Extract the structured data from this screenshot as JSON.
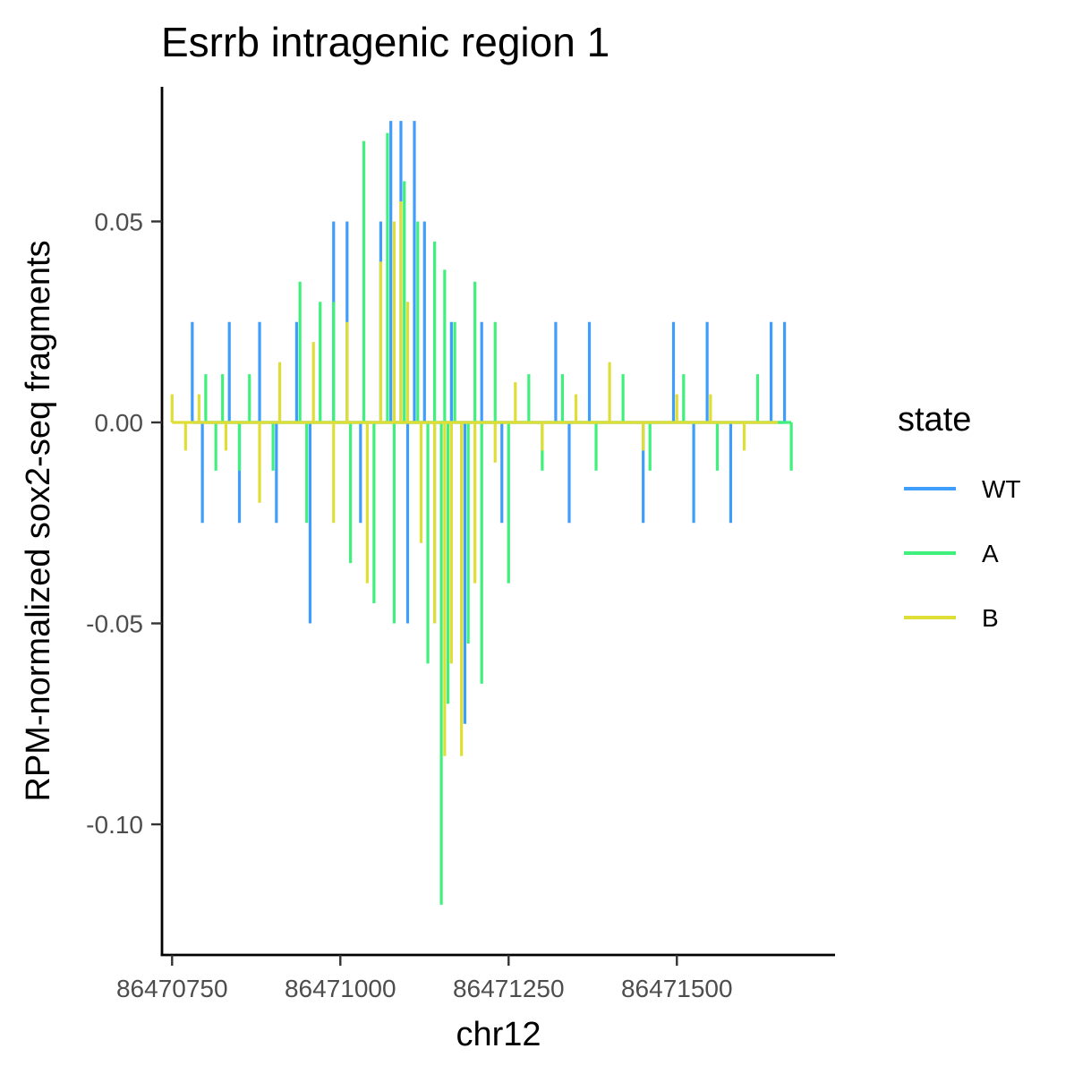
{
  "chart_data": {
    "type": "line",
    "title": "Esrrb intragenic region 1",
    "xlabel": "chr12",
    "ylabel": "RPM-normalized sox2-seq fragments",
    "xlim": [
      86470735,
      86471735
    ],
    "ylim": [
      -0.1325,
      0.0835
    ],
    "x_ticks": [
      86470750,
      86471000,
      86471250,
      86471500
    ],
    "x_tick_labels": [
      "86470750",
      "86471000",
      "86471250",
      "86471500"
    ],
    "y_ticks": [
      0.05,
      0.0,
      -0.05,
      -0.1
    ],
    "y_tick_labels": [
      "0.05",
      "0.00",
      "-0.05",
      "-0.10"
    ],
    "grid": false,
    "legend": {
      "title": "state",
      "position": "right",
      "entries": [
        "WT",
        "A",
        "B"
      ]
    },
    "series": [
      {
        "name": "WT",
        "color": "#3f9dfb",
        "x": [
          86470780,
          86470795,
          86470835,
          86470850,
          86470880,
          86470905,
          86470935,
          86470955,
          86470990,
          86471010,
          86471030,
          86471060,
          86471075,
          86471090,
          86471100,
          86471110,
          86471125,
          86471140,
          86471165,
          86471185,
          86471210,
          86471240,
          86471320,
          86471340,
          86471370,
          86471450,
          86471495,
          86471525,
          86471545,
          86471580,
          86471640,
          86471660
        ],
        "y": [
          0.025,
          -0.025,
          0.025,
          -0.025,
          0.025,
          -0.025,
          0.025,
          -0.05,
          0.05,
          0.05,
          -0.025,
          0.05,
          0.075,
          0.075,
          -0.05,
          0.075,
          0.05,
          -0.05,
          0.025,
          -0.075,
          0.025,
          -0.025,
          0.025,
          -0.025,
          0.025,
          -0.025,
          0.025,
          -0.025,
          0.025,
          -0.025,
          0.025,
          0.025
        ]
      },
      {
        "name": "A",
        "color": "#40f07c",
        "x": [
          86470800,
          86470815,
          86470825,
          86470850,
          86470865,
          86470900,
          86470940,
          86470950,
          86470970,
          86470990,
          86471015,
          86471035,
          86471050,
          86471070,
          86471080,
          86471095,
          86471115,
          86471130,
          86471140,
          86471150,
          86471155,
          86471160,
          86471170,
          86471190,
          86471200,
          86471210,
          86471230,
          86471250,
          86471280,
          86471300,
          86471330,
          86471380,
          86471420,
          86471460,
          86471510,
          86471560,
          86471620,
          86471670
        ],
        "y": [
          0.012,
          -0.012,
          0.012,
          -0.012,
          0.012,
          -0.012,
          0.035,
          -0.025,
          0.03,
          0.03,
          -0.035,
          0.07,
          -0.045,
          0.072,
          -0.05,
          0.06,
          0.05,
          -0.06,
          0.045,
          -0.12,
          0.038,
          -0.07,
          0.025,
          -0.055,
          0.035,
          -0.065,
          0.025,
          -0.04,
          0.012,
          -0.012,
          0.012,
          -0.012,
          0.012,
          -0.012,
          0.012,
          -0.012,
          0.012,
          -0.012
        ]
      },
      {
        "name": "B",
        "color": "#dfde36",
        "x": [
          86470750,
          86470770,
          86470790,
          86470830,
          86470880,
          86470910,
          86470960,
          86470990,
          86471010,
          86471040,
          86471060,
          86471080,
          86471090,
          86471100,
          86471120,
          86471140,
          86471155,
          86471165,
          86471180,
          86471200,
          86471230,
          86471260,
          86471300,
          86471350,
          86471400,
          86471450,
          86471500,
          86471550,
          86471600,
          86471650
        ],
        "y": [
          0.007,
          -0.007,
          0.007,
          -0.007,
          -0.02,
          0.015,
          0.02,
          -0.025,
          0.025,
          -0.04,
          0.04,
          0.05,
          0.055,
          0.03,
          -0.03,
          -0.05,
          -0.083,
          -0.06,
          -0.083,
          -0.04,
          -0.01,
          0.01,
          -0.007,
          0.007,
          0.015,
          -0.007,
          0.007,
          0.007,
          -0.007,
          0.0
        ]
      }
    ]
  }
}
